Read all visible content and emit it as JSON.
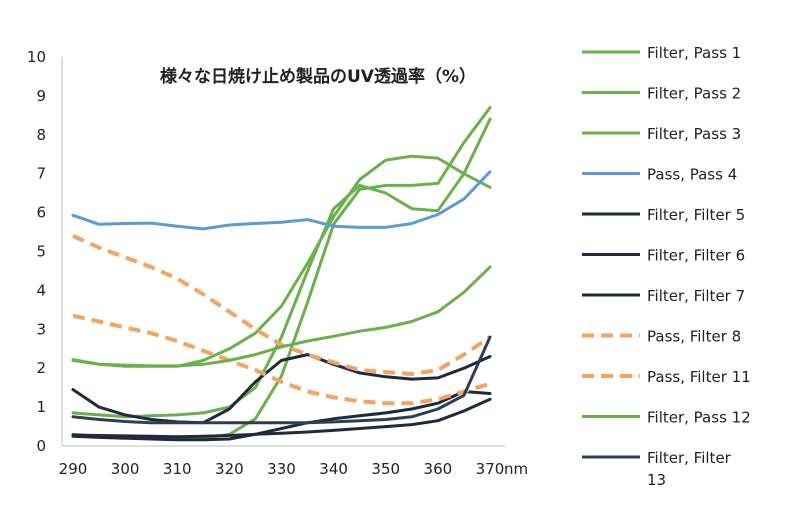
{
  "chart_data": {
    "type": "line",
    "title": "様々な日焼け止め製品のUV透過率（%）",
    "x_unit_label": "nm",
    "xlabel": "",
    "ylabel": "",
    "xlim": [
      290,
      370
    ],
    "ylim": [
      0,
      10
    ],
    "x_ticks": [
      290,
      300,
      310,
      320,
      330,
      340,
      350,
      360,
      370
    ],
    "y_ticks": [
      0,
      1,
      2,
      3,
      4,
      5,
      6,
      7,
      8,
      9,
      10
    ],
    "grid": false,
    "legend_position": "right",
    "x": [
      290,
      295,
      300,
      305,
      310,
      315,
      320,
      325,
      330,
      335,
      340,
      345,
      350,
      355,
      360,
      365,
      370
    ],
    "series": [
      {
        "name": "Filter, Pass 1",
        "color": "#6ab04c",
        "dash": "solid",
        "values": [
          0.3,
          0.25,
          0.22,
          0.2,
          0.18,
          0.2,
          0.3,
          0.7,
          1.8,
          3.7,
          5.7,
          6.6,
          6.7,
          6.7,
          6.75,
          7.8,
          8.7
        ]
      },
      {
        "name": "Filter, Pass 2",
        "color": "#6ab04c",
        "dash": "solid",
        "values": [
          0.85,
          0.8,
          0.75,
          0.78,
          0.8,
          0.85,
          1.0,
          1.5,
          2.8,
          4.5,
          6.1,
          6.7,
          6.5,
          6.1,
          6.05,
          7.0,
          8.4
        ]
      },
      {
        "name": "Filter, Pass 3",
        "color": "#6ab04c",
        "dash": "solid",
        "values": [
          2.2,
          2.1,
          2.05,
          2.05,
          2.05,
          2.2,
          2.5,
          2.9,
          3.6,
          4.7,
          5.9,
          6.85,
          7.35,
          7.45,
          7.4,
          7.0,
          6.65
        ]
      },
      {
        "name": "Pass, Pass 4",
        "color": "#5b9bd5",
        "dash": "solid",
        "values": [
          5.93,
          5.7,
          5.72,
          5.73,
          5.65,
          5.58,
          5.68,
          5.72,
          5.75,
          5.82,
          5.65,
          5.62,
          5.62,
          5.72,
          5.95,
          6.35,
          7.05
        ]
      },
      {
        "name": "Filter, Filter 5",
        "color": "#1f2a3c",
        "dash": "solid",
        "values": [
          1.45,
          1.0,
          0.8,
          0.68,
          0.62,
          0.6,
          0.95,
          1.65,
          2.2,
          2.35,
          2.1,
          1.88,
          1.78,
          1.72,
          1.75,
          2.0,
          2.3
        ]
      },
      {
        "name": "Filter, Filter 6",
        "color": "#1f2a3c",
        "dash": "solid",
        "values": [
          0.28,
          0.27,
          0.26,
          0.25,
          0.24,
          0.25,
          0.27,
          0.3,
          0.33,
          0.36,
          0.4,
          0.45,
          0.5,
          0.55,
          0.65,
          0.9,
          1.2
        ]
      },
      {
        "name": "Filter, Filter 7",
        "color": "#1f2a3c",
        "dash": "solid",
        "values": [
          0.25,
          0.22,
          0.2,
          0.18,
          0.16,
          0.16,
          0.18,
          0.3,
          0.45,
          0.6,
          0.7,
          0.78,
          0.85,
          0.95,
          1.1,
          1.4,
          1.35
        ]
      },
      {
        "name": "Pass, Filter 8",
        "color": "#f4a460",
        "dash": "dashed",
        "values": [
          5.4,
          5.1,
          4.85,
          4.6,
          4.3,
          3.9,
          3.45,
          3.0,
          2.6,
          2.35,
          2.15,
          1.95,
          1.9,
          1.85,
          1.95,
          2.35,
          2.8
        ]
      },
      {
        "name": "Pass, Filter 11",
        "color": "#f4a460",
        "dash": "dashed",
        "values": [
          3.35,
          3.2,
          3.05,
          2.9,
          2.7,
          2.45,
          2.2,
          1.95,
          1.65,
          1.4,
          1.25,
          1.15,
          1.1,
          1.1,
          1.2,
          1.4,
          1.6
        ]
      },
      {
        "name": "Filter, Pass 12",
        "color": "#6ab04c",
        "dash": "solid",
        "values": [
          2.22,
          2.1,
          2.08,
          2.06,
          2.06,
          2.1,
          2.2,
          2.35,
          2.55,
          2.7,
          2.82,
          2.95,
          3.05,
          3.2,
          3.45,
          3.95,
          4.6
        ]
      },
      {
        "name": "Filter, Filter 13",
        "color": "#2e3f55",
        "dash": "solid",
        "values": [
          0.75,
          0.68,
          0.63,
          0.6,
          0.6,
          0.6,
          0.6,
          0.6,
          0.6,
          0.6,
          0.62,
          0.65,
          0.68,
          0.75,
          0.95,
          1.3,
          2.8
        ]
      }
    ]
  }
}
